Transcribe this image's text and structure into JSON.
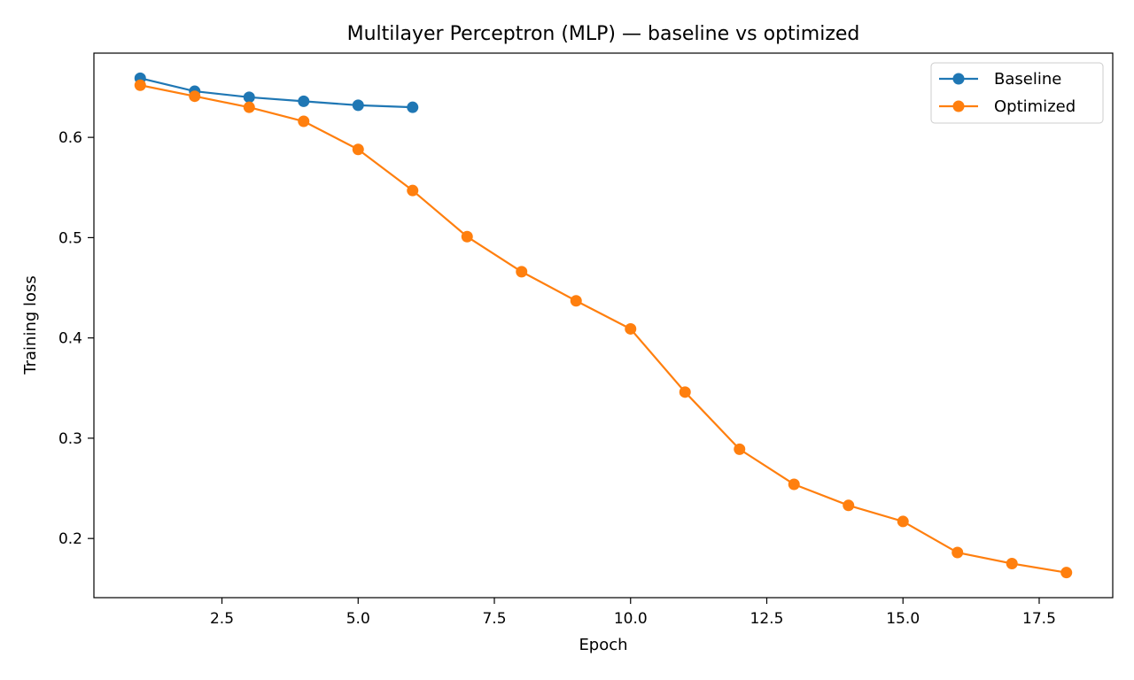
{
  "chart_data": {
    "type": "line",
    "title": "Multilayer Perceptron (MLP) — baseline vs optimized",
    "xlabel": "Epoch",
    "ylabel": "Training loss",
    "xlim": [
      0.15,
      18.85
    ],
    "ylim": [
      0.141,
      0.684
    ],
    "xticks": [
      2.5,
      5.0,
      7.5,
      10.0,
      12.5,
      15.0,
      17.5
    ],
    "xtick_labels": [
      "2.5",
      "5.0",
      "7.5",
      "10.0",
      "12.5",
      "15.0",
      "17.5"
    ],
    "yticks": [
      0.2,
      0.3,
      0.4,
      0.5,
      0.6
    ],
    "ytick_labels": [
      "0.2",
      "0.3",
      "0.4",
      "0.5",
      "0.6"
    ],
    "grid": false,
    "legend_position": "top-right",
    "series": [
      {
        "name": "Baseline",
        "color": "#1f77b4",
        "x": [
          1,
          2,
          3,
          4,
          5,
          6
        ],
        "y": [
          0.659,
          0.646,
          0.64,
          0.636,
          0.632,
          0.63
        ]
      },
      {
        "name": "Optimized",
        "color": "#ff7f0e",
        "x": [
          1,
          2,
          3,
          4,
          5,
          6,
          7,
          8,
          9,
          10,
          11,
          12,
          13,
          14,
          15,
          16,
          17,
          18
        ],
        "y": [
          0.652,
          0.641,
          0.63,
          0.616,
          0.588,
          0.547,
          0.501,
          0.466,
          0.437,
          0.409,
          0.346,
          0.289,
          0.254,
          0.233,
          0.217,
          0.186,
          0.175,
          0.166
        ]
      }
    ]
  }
}
